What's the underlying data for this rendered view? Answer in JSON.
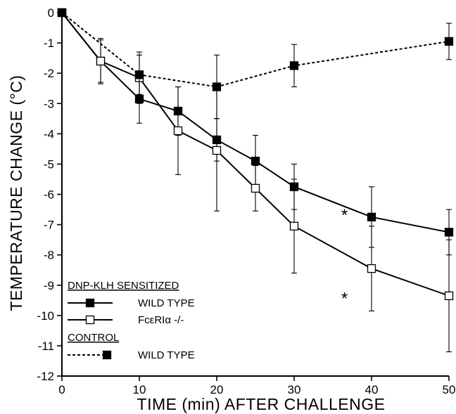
{
  "chart_data": {
    "type": "line",
    "title": "",
    "xlabel": "TIME  (min)  AFTER  CHALLENGE",
    "ylabel": "TEMPERATURE  CHANGE  (°C)",
    "xlim": [
      0,
      50
    ],
    "ylim": [
      -12,
      0
    ],
    "x_ticks": [
      0,
      10,
      20,
      30,
      40,
      50
    ],
    "y_ticks": [
      0,
      -1,
      -2,
      -3,
      -4,
      -5,
      -6,
      -7,
      -8,
      -9,
      -10,
      -11,
      -12
    ],
    "grid": false,
    "legend_position": "bottom-left",
    "legend_groups": [
      {
        "heading": "DNP-KLH SENSITIZED",
        "entries": [
          "WILD TYPE",
          "FcεRIα  -/-"
        ]
      },
      {
        "heading": "CONTROL",
        "entries": [
          "WILD TYPE"
        ]
      }
    ],
    "series": [
      {
        "name": "WILD TYPE",
        "group": "DNP-KLH SENSITIZED",
        "style": "solid",
        "marker": "filled-square",
        "x": [
          0,
          5,
          10,
          15,
          20,
          25,
          30,
          40,
          50
        ],
        "y": [
          0,
          -1.6,
          -2.85,
          -3.25,
          -4.2,
          -4.9,
          -5.75,
          -6.75,
          -7.25
        ],
        "err": [
          0,
          0.7,
          0.8,
          0.8,
          0.7,
          0.85,
          0.75,
          1.0,
          0.75
        ]
      },
      {
        "name": "FcεRIα  -/-",
        "group": "DNP-KLH SENSITIZED",
        "style": "solid",
        "marker": "open-square",
        "x": [
          0,
          5,
          10,
          15,
          20,
          25,
          30,
          40,
          50
        ],
        "y": [
          0,
          -1.6,
          -2.15,
          -3.9,
          -4.55,
          -5.8,
          -7.05,
          -8.45,
          -9.35
        ],
        "err": [
          0,
          0.75,
          0.85,
          1.45,
          2.0,
          0.75,
          1.55,
          1.4,
          1.85
        ]
      },
      {
        "name": "WILD TYPE",
        "group": "CONTROL",
        "style": "dashed",
        "marker": "filled-square",
        "x": [
          0,
          10,
          20,
          30,
          50
        ],
        "y": [
          0,
          -2.05,
          -2.45,
          -1.75,
          -0.95
        ],
        "err": [
          0,
          0.65,
          1.05,
          0.7,
          0.6
        ]
      }
    ],
    "annotations": [
      {
        "text": "*",
        "x": 36.5,
        "y": -6.55
      },
      {
        "text": "*",
        "x": 36.5,
        "y": -9.3
      }
    ]
  }
}
